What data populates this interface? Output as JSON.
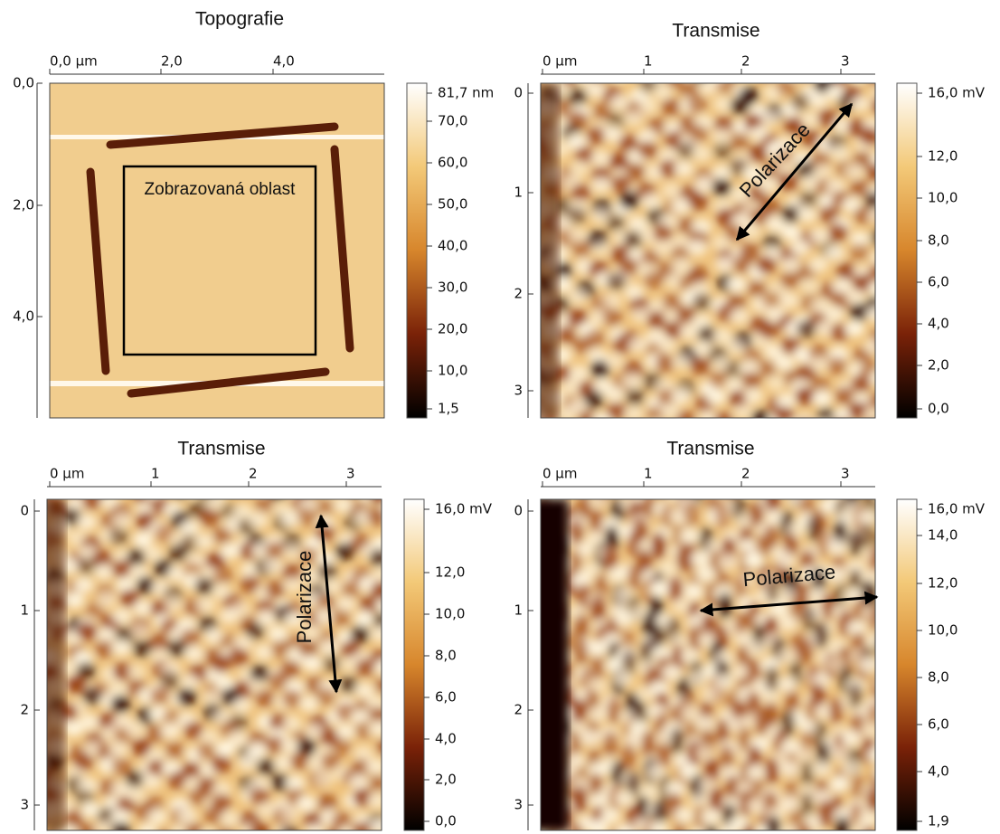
{
  "panels": [
    {
      "title": "Topografie",
      "x_ticks": [
        "0,0 µm",
        "2,0",
        "4,0"
      ],
      "y_ticks": [
        "0,0",
        "2,0",
        "4,0"
      ],
      "colorbar_ticks": [
        "81,7 nm",
        "70,0",
        "60,0",
        "50,0",
        "40,0",
        "30,0",
        "20,0",
        "10,0",
        "1,5"
      ],
      "annotation": "Zobrazovaná oblast"
    },
    {
      "title": "Transmise",
      "x_ticks": [
        "0 µm",
        "1",
        "2",
        "3"
      ],
      "y_ticks": [
        "0",
        "1",
        "2",
        "3"
      ],
      "colorbar_ticks": [
        "16,0 mV",
        "12,0",
        "10,0",
        "8,0",
        "6,0",
        "4,0",
        "2,0",
        "0,0"
      ],
      "annotation": "Polarizace"
    },
    {
      "title": "Transmise",
      "x_ticks": [
        "0 µm",
        "1",
        "2",
        "3"
      ],
      "y_ticks": [
        "0",
        "1",
        "2",
        "3"
      ],
      "colorbar_ticks": [
        "16,0 mV",
        "12,0",
        "10,0",
        "8,0",
        "6,0",
        "4,0",
        "2,0",
        "0,0"
      ],
      "annotation": "Polarizace"
    },
    {
      "title": "Transmise",
      "x_ticks": [
        "0 µm",
        "1",
        "2",
        "3"
      ],
      "y_ticks": [
        "0",
        "1",
        "2",
        "3"
      ],
      "colorbar_ticks": [
        "16,0 mV",
        "14,0",
        "12,0",
        "10,0",
        "8,0",
        "6,0",
        "4,0",
        "1,9"
      ],
      "annotation": "Polarizace"
    }
  ]
}
